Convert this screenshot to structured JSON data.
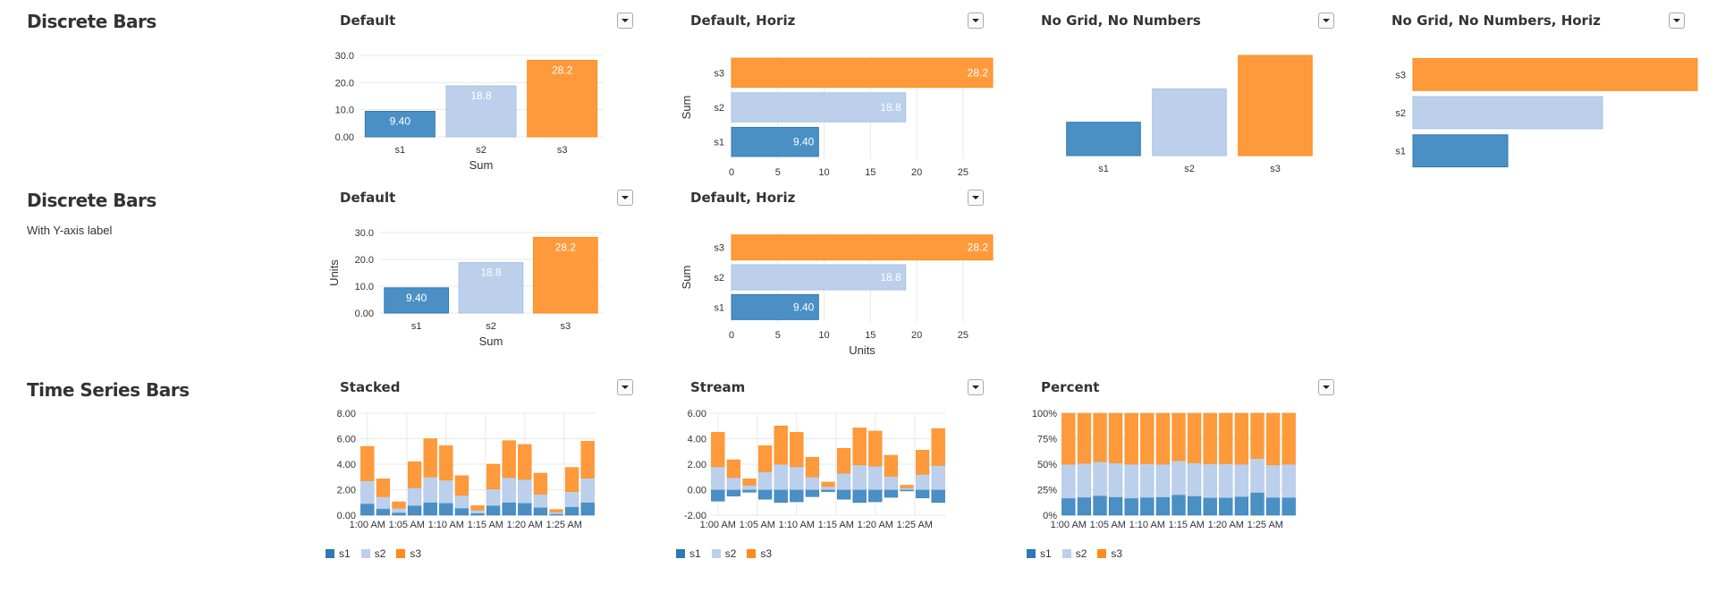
{
  "sections": [
    {
      "title": "Discrete Bars",
      "subtitle": ""
    },
    {
      "title": "Discrete Bars",
      "subtitle": "With Y-axis label"
    },
    {
      "title": "Time Series Bars",
      "subtitle": ""
    }
  ],
  "colors": {
    "s1": "#4a90c4",
    "s2": "#bcd0ec",
    "s3": "#ff9a3c",
    "grid": "#e8e8e8",
    "axis": "#ccc"
  },
  "legend": [
    "s1",
    "s2",
    "s3"
  ],
  "chart_data": [
    {
      "id": "c1",
      "type": "bar",
      "title": "Default",
      "categories": [
        "s1",
        "s2",
        "s3"
      ],
      "values": [
        9.4,
        18.8,
        28.2
      ],
      "labels": [
        "9.40",
        "18.8",
        "28.2"
      ],
      "xlabel": "Sum",
      "ylabel": "",
      "ylim": [
        0,
        30
      ],
      "yticks": [
        "0.00",
        "10.0",
        "20.0",
        "30.0"
      ],
      "grid": true,
      "numbers": true
    },
    {
      "id": "c2",
      "type": "bar",
      "orientation": "horizontal",
      "title": "Default, Horiz",
      "categories": [
        "s1",
        "s2",
        "s3"
      ],
      "values": [
        9.4,
        18.8,
        28.2
      ],
      "labels": [
        "9.40",
        "18.8",
        "28.2"
      ],
      "xlabel": "",
      "ylabel": "Sum",
      "xlim": [
        0,
        28.2
      ],
      "xticks": [
        "0",
        "5",
        "10",
        "15",
        "20",
        "25"
      ],
      "grid": true,
      "numbers": true
    },
    {
      "id": "c3",
      "type": "bar",
      "title": "No Grid, No Numbers",
      "categories": [
        "s1",
        "s2",
        "s3"
      ],
      "values": [
        9.4,
        18.8,
        28.2
      ],
      "xlabel": "",
      "ylabel": "",
      "ylim": [
        0,
        28.2
      ],
      "grid": false,
      "numbers": false
    },
    {
      "id": "c4",
      "type": "bar",
      "orientation": "horizontal",
      "title": "No Grid, No Numbers, Horiz",
      "categories": [
        "s1",
        "s2",
        "s3"
      ],
      "values": [
        9.4,
        18.8,
        28.2
      ],
      "xlabel": "",
      "ylabel": "",
      "xlim": [
        0,
        28.2
      ],
      "grid": false,
      "numbers": false
    },
    {
      "id": "c5",
      "type": "bar",
      "title": "Default",
      "categories": [
        "s1",
        "s2",
        "s3"
      ],
      "values": [
        9.4,
        18.8,
        28.2
      ],
      "labels": [
        "9.40",
        "18.8",
        "28.2"
      ],
      "xlabel": "Sum",
      "ylabel": "Units",
      "ylim": [
        0,
        30
      ],
      "yticks": [
        "0.00",
        "10.0",
        "20.0",
        "30.0"
      ],
      "grid": true,
      "numbers": true
    },
    {
      "id": "c6",
      "type": "bar",
      "orientation": "horizontal",
      "title": "Default, Horiz",
      "categories": [
        "s1",
        "s2",
        "s3"
      ],
      "values": [
        9.4,
        18.8,
        28.2
      ],
      "labels": [
        "9.40",
        "18.8",
        "28.2"
      ],
      "xlabel": "Units",
      "ylabel": "Sum",
      "xlim": [
        0,
        28.2
      ],
      "xticks": [
        "0",
        "5",
        "10",
        "15",
        "20",
        "25"
      ],
      "grid": true,
      "numbers": true
    },
    {
      "id": "c7",
      "type": "bar",
      "mode": "stacked",
      "title": "Stacked",
      "x_ticks": [
        "1:00 AM",
        "1:05 AM",
        "1:10 AM",
        "1:15 AM",
        "1:20 AM",
        "1:25 AM"
      ],
      "series": [
        {
          "name": "s1",
          "values": [
            0.9,
            0.5,
            0.2,
            0.75,
            1.0,
            0.95,
            0.55,
            0.15,
            0.75,
            1.0,
            0.95,
            0.6,
            0.1,
            0.65,
            1.0
          ]
        },
        {
          "name": "s2",
          "values": [
            1.8,
            0.95,
            0.35,
            1.4,
            2.0,
            1.8,
            1.0,
            0.25,
            1.3,
            1.95,
            1.85,
            1.05,
            0.15,
            1.2,
            1.9
          ]
        },
        {
          "name": "s3",
          "values": [
            2.7,
            1.4,
            0.5,
            2.05,
            3.0,
            2.7,
            1.55,
            0.35,
            1.95,
            2.9,
            2.75,
            1.65,
            0.2,
            1.9,
            2.9
          ]
        }
      ],
      "ylim": [
        0,
        8
      ],
      "yticks": [
        "0.00",
        "2.00",
        "4.00",
        "6.00",
        "8.00"
      ],
      "grid": true
    },
    {
      "id": "c8",
      "type": "bar",
      "mode": "stream",
      "title": "Stream",
      "x_ticks": [
        "1:00 AM",
        "1:05 AM",
        "1:10 AM",
        "1:15 AM",
        "1:20 AM",
        "1:25 AM"
      ],
      "series": [
        {
          "name": "s1",
          "values": [
            0.9,
            0.5,
            0.2,
            0.75,
            1.0,
            0.95,
            0.55,
            0.15,
            0.75,
            1.0,
            0.95,
            0.6,
            0.1,
            0.65,
            1.0
          ]
        },
        {
          "name": "s2",
          "values": [
            1.8,
            0.95,
            0.35,
            1.4,
            2.0,
            1.8,
            1.0,
            0.25,
            1.3,
            1.95,
            1.85,
            1.05,
            0.15,
            1.2,
            1.9
          ]
        },
        {
          "name": "s3",
          "values": [
            2.7,
            1.4,
            0.5,
            2.05,
            3.0,
            2.7,
            1.55,
            0.35,
            1.95,
            2.9,
            2.75,
            1.65,
            0.2,
            1.9,
            2.9
          ]
        }
      ],
      "ylim": [
        -2,
        6
      ],
      "yticks": [
        "-2.00",
        "0.00",
        "2.00",
        "4.00",
        "6.00"
      ],
      "grid": true
    },
    {
      "id": "c9",
      "type": "bar",
      "mode": "percent",
      "title": "Percent",
      "x_ticks": [
        "1:00 AM",
        "1:05 AM",
        "1:10 AM",
        "1:15 AM",
        "1:20 AM",
        "1:25 AM"
      ],
      "series": [
        {
          "name": "s1",
          "values": [
            0.9,
            0.5,
            0.2,
            0.75,
            1.0,
            0.95,
            0.55,
            0.15,
            0.75,
            1.0,
            0.95,
            0.6,
            0.1,
            0.65,
            1.0
          ]
        },
        {
          "name": "s2",
          "values": [
            1.8,
            0.95,
            0.35,
            1.4,
            2.0,
            1.8,
            1.0,
            0.25,
            1.3,
            1.95,
            1.85,
            1.05,
            0.15,
            1.2,
            1.9
          ]
        },
        {
          "name": "s3",
          "values": [
            2.7,
            1.4,
            0.5,
            2.05,
            3.0,
            2.7,
            1.55,
            0.35,
            1.95,
            2.9,
            2.75,
            1.65,
            0.2,
            1.9,
            2.9
          ]
        }
      ],
      "ylim": [
        0,
        100
      ],
      "yticks": [
        "0%",
        "25%",
        "50%",
        "75%",
        "100%"
      ],
      "grid": true
    }
  ]
}
